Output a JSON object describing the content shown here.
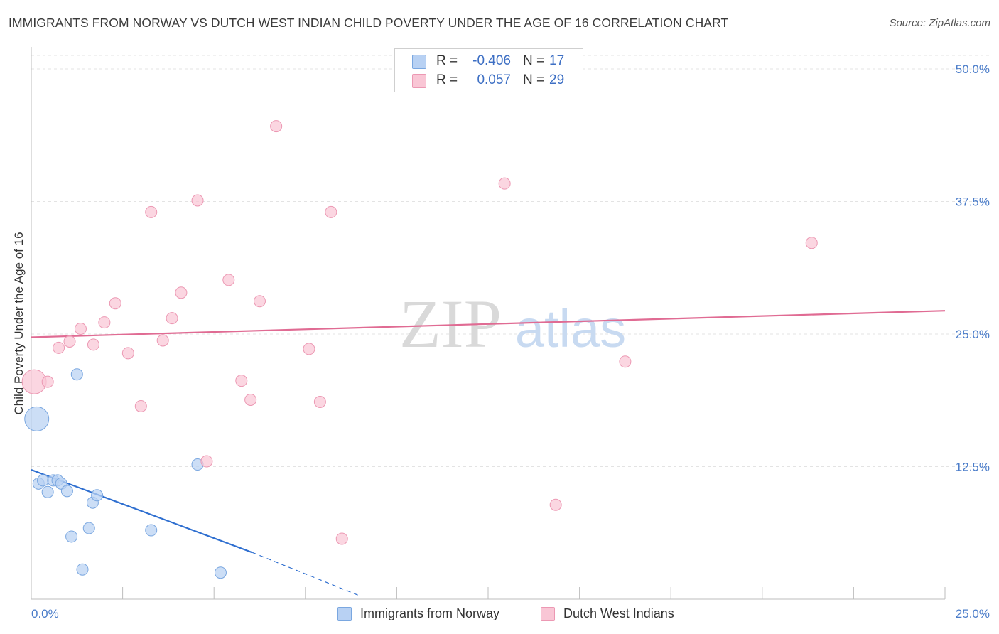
{
  "title": "IMMIGRANTS FROM NORWAY VS DUTCH WEST INDIAN CHILD POVERTY UNDER THE AGE OF 16 CORRELATION CHART",
  "source": "Source: ZipAtlas.com",
  "watermark": {
    "zip": "ZIP",
    "atlas": "atlas"
  },
  "legend": {
    "rows": [
      {
        "r_label": "R =",
        "r_value": "-0.406",
        "n_label": "N =",
        "n_value": "17",
        "fill": "#b8d1f3",
        "stroke": "#7aa7e0"
      },
      {
        "r_label": "R =",
        "r_value": "0.057",
        "n_label": "N =",
        "n_value": "29",
        "fill": "#f9c6d5",
        "stroke": "#ec98b3"
      }
    ]
  },
  "bottom_legend": [
    {
      "label": "Immigrants from Norway",
      "fill": "#b8d1f3",
      "stroke": "#7aa7e0"
    },
    {
      "label": "Dutch West Indians",
      "fill": "#f9c6d5",
      "stroke": "#ec98b3"
    }
  ],
  "chart_data": {
    "type": "scatter",
    "title": "IMMIGRANTS FROM NORWAY VS DUTCH WEST INDIAN CHILD POVERTY UNDER THE AGE OF 16 CORRELATION CHART",
    "xlabel": "",
    "ylabel": "Child Poverty Under the Age of 16",
    "xlim": [
      0,
      25
    ],
    "ylim": [
      0,
      50
    ],
    "x_tick_labels": [
      {
        "value": 0,
        "label": "0.0%"
      },
      {
        "value": 25,
        "label": "25.0%"
      }
    ],
    "y_tick_labels": [
      {
        "value": 12.5,
        "label": "12.5%"
      },
      {
        "value": 25,
        "label": "25.0%"
      },
      {
        "value": 37.5,
        "label": "37.5%"
      },
      {
        "value": 50,
        "label": "50.0%"
      }
    ],
    "grid": true,
    "series": [
      {
        "name": "Immigrants from Norway",
        "color": "#7aa7e0",
        "fill": "#b8d1f3",
        "points": [
          {
            "x": 0.15,
            "y": 17.0,
            "big": true
          },
          {
            "x": 0.2,
            "y": 10.9
          },
          {
            "x": 0.32,
            "y": 11.2
          },
          {
            "x": 0.45,
            "y": 10.1
          },
          {
            "x": 0.6,
            "y": 11.2
          },
          {
            "x": 0.72,
            "y": 11.2
          },
          {
            "x": 0.82,
            "y": 10.9
          },
          {
            "x": 0.98,
            "y": 10.2
          },
          {
            "x": 1.1,
            "y": 5.9
          },
          {
            "x": 1.25,
            "y": 21.2
          },
          {
            "x": 1.4,
            "y": 2.8
          },
          {
            "x": 1.58,
            "y": 6.7
          },
          {
            "x": 1.68,
            "y": 9.1
          },
          {
            "x": 1.8,
            "y": 9.8
          },
          {
            "x": 3.28,
            "y": 6.5
          },
          {
            "x": 4.55,
            "y": 12.7
          },
          {
            "x": 5.18,
            "y": 2.5
          }
        ],
        "trend": {
          "x0": 0,
          "y0": 12.2,
          "x1": 6.05,
          "y1": 4.4,
          "dash_to_x": 9.0,
          "dash_to_y": 0.3
        }
      },
      {
        "name": "Dutch West Indians",
        "color": "#ec98b3",
        "fill": "#f9c6d5",
        "points": [
          {
            "x": 0.08,
            "y": 20.5,
            "big": true
          },
          {
            "x": 0.45,
            "y": 20.5
          },
          {
            "x": 0.75,
            "y": 23.7
          },
          {
            "x": 1.05,
            "y": 24.3
          },
          {
            "x": 1.35,
            "y": 25.5
          },
          {
            "x": 1.7,
            "y": 24.0
          },
          {
            "x": 2.0,
            "y": 26.1
          },
          {
            "x": 2.3,
            "y": 27.9
          },
          {
            "x": 2.65,
            "y": 23.2
          },
          {
            "x": 3.0,
            "y": 18.2
          },
          {
            "x": 3.28,
            "y": 36.5
          },
          {
            "x": 3.6,
            "y": 24.4
          },
          {
            "x": 3.85,
            "y": 26.5
          },
          {
            "x": 4.1,
            "y": 28.9
          },
          {
            "x": 4.55,
            "y": 37.6
          },
          {
            "x": 4.8,
            "y": 13.0
          },
          {
            "x": 5.4,
            "y": 30.1
          },
          {
            "x": 5.75,
            "y": 20.6
          },
          {
            "x": 6.0,
            "y": 18.8
          },
          {
            "x": 6.25,
            "y": 28.1
          },
          {
            "x": 6.7,
            "y": 44.6
          },
          {
            "x": 7.6,
            "y": 23.6
          },
          {
            "x": 7.9,
            "y": 18.6
          },
          {
            "x": 8.2,
            "y": 36.5
          },
          {
            "x": 8.5,
            "y": 5.7
          },
          {
            "x": 12.95,
            "y": 39.2
          },
          {
            "x": 14.35,
            "y": 8.9
          },
          {
            "x": 16.25,
            "y": 22.4
          },
          {
            "x": 21.35,
            "y": 33.6
          }
        ],
        "trend": {
          "x0": 0,
          "y0": 24.7,
          "x1": 25,
          "y1": 27.2
        }
      }
    ]
  }
}
